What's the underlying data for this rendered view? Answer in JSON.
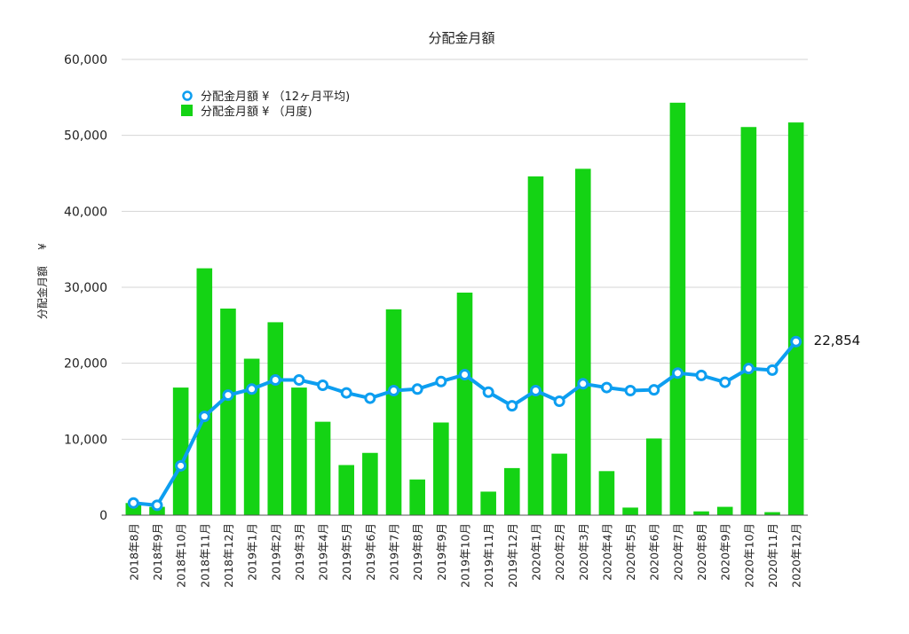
{
  "chart_data": {
    "type": "bar",
    "title": "分配金月額",
    "ylabel": "分配金月額",
    "ylabel_unit": "¥",
    "ylim": [
      0,
      60000
    ],
    "yticks": [
      0,
      10000,
      20000,
      30000,
      40000,
      50000,
      60000
    ],
    "ytick_labels": [
      "0",
      "10,000",
      "20,000",
      "30,000",
      "40,000",
      "50,000",
      "60,000"
    ],
    "grid": true,
    "legend_position": "top-left",
    "categories": [
      "2018年8月",
      "2018年9月",
      "2018年10月",
      "2018年11月",
      "2018年12月",
      "2019年1月",
      "2019年2月",
      "2019年3月",
      "2019年4月",
      "2019年5月",
      "2019年6月",
      "2019年7月",
      "2019年8月",
      "2019年9月",
      "2019年10月",
      "2019年11月",
      "2019年12月",
      "2020年1月",
      "2020年2月",
      "2020年3月",
      "2020年4月",
      "2020年5月",
      "2020年6月",
      "2020年7月",
      "2020年8月",
      "2020年9月",
      "2020年10月",
      "2020年11月",
      "2020年12月"
    ],
    "series": [
      {
        "name": "分配金月額 ¥ （月度)",
        "type": "bar",
        "color": "#14d314",
        "values": [
          1600,
          1100,
          16800,
          32500,
          27200,
          20600,
          25400,
          16800,
          12300,
          6600,
          8200,
          27100,
          4700,
          12200,
          29300,
          3100,
          6200,
          44600,
          8100,
          45600,
          5800,
          1000,
          10100,
          54300,
          500,
          1100,
          51100,
          400,
          51700
        ]
      },
      {
        "name": "分配金月額 ¥ （12ヶ月平均)",
        "type": "line",
        "color": "#0d9ef0",
        "values": [
          1600,
          1300,
          6500,
          13000,
          15800,
          16600,
          17800,
          17800,
          17100,
          16100,
          15400,
          16400,
          16600,
          17600,
          18500,
          16200,
          14400,
          16400,
          15000,
          17300,
          16800,
          16400,
          16500,
          18700,
          18400,
          17500,
          19300,
          19100,
          22854
        ]
      }
    ],
    "annotations": [
      {
        "text": "22,854",
        "series": 1,
        "index": 28
      }
    ]
  }
}
